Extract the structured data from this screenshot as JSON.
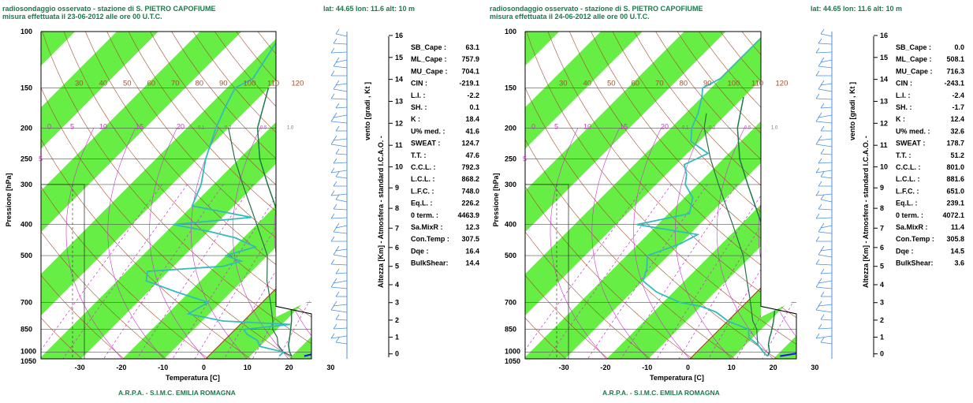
{
  "footer": "A.R.P.A. - S.I.M.C. EMILIA ROMAGNA",
  "pressure_axis_label": "Pressione [hPa]",
  "temperature_axis_label": "Temperatura [C]",
  "altitude_axis_label": "Altezza [Km] - Atmosfera - standard I.C.A.O. -",
  "wind_axis_label": "vento [gradi , Kt ]",
  "colors": {
    "band_green": "#66ee44",
    "temperature": "#1a1aee",
    "dewpoint": "#33bbbb",
    "parcel": "#1a7a4a",
    "dry_adiabat": "#a0522d",
    "mixing_ratio": "#cc33cc",
    "freezing_line": "#dd2222",
    "wind": "#4a90e2",
    "header": "#1a7a4a"
  },
  "chart_data": [
    {
      "type": "skew-t",
      "title_line1": "radiosondaggio osservato - stazione di S. PIETRO CAPOFIUME",
      "title_line2": "misura effettuata il 23-06-2012 alle ore 00 U.T.C.",
      "location": "lat:  44.65 lon:    11.6 alt:    10  m",
      "pressure_ticks": [
        "100",
        "150",
        "200",
        "250",
        "300",
        "400",
        "500",
        "700",
        "850",
        "1000",
        "1050"
      ],
      "temperature_ticks": [
        "-30",
        "-20",
        "-10",
        "0",
        "10",
        "20",
        "30"
      ],
      "altitude_ticks": [
        "0",
        "1",
        "2",
        "3",
        "4",
        "5",
        "6",
        "7",
        "8",
        "9",
        "10",
        "11",
        "12",
        "13",
        "14",
        "15",
        "16"
      ],
      "dry_adiabat_labels": [
        "30",
        "40",
        "50",
        "60",
        "70",
        "80",
        "90",
        "100",
        "110",
        "120"
      ],
      "mixing_ratio_labels": [
        "0",
        "5",
        "10",
        "15",
        "20",
        "0.1",
        "0.2",
        "0.5",
        "1.0"
      ],
      "indices": [
        {
          "label": "SB_Cape :",
          "value": "63.1"
        },
        {
          "label": "ML_Cape :",
          "value": "757.9"
        },
        {
          "label": "MU_Cape :",
          "value": "704.1"
        },
        {
          "label": "CIN      :",
          "value": "-219.1"
        },
        {
          "label": "L.I.      :",
          "value": "-2.2"
        },
        {
          "label": "SH.      :",
          "value": "0.1"
        },
        {
          "label": "K         :",
          "value": "18.4"
        },
        {
          "label": "U% med. :",
          "value": "41.6"
        },
        {
          "label": "SWEAT  :",
          "value": "124.7"
        },
        {
          "label": "T.T.     :",
          "value": "47.6"
        },
        {
          "label": "C.C.L.  :",
          "value": "792.3"
        },
        {
          "label": "L.C.L.  :",
          "value": "868.2"
        },
        {
          "label": "L.F.C.  :",
          "value": "748.0"
        },
        {
          "label": "Eq.L.    :",
          "value": "226.2"
        },
        {
          "label": "0 term. :",
          "value": "4463.9"
        },
        {
          "label": "Sa.MixR :",
          "value": "12.3"
        },
        {
          "label": "Con.Temp :",
          "value": "307.5"
        },
        {
          "label": "Dqe      :",
          "value": "16.4"
        },
        {
          "label": "BulkShear:",
          "value": "14.4"
        }
      ],
      "temperature_profile": [
        [
          1030,
          23
        ],
        [
          1000,
          26
        ],
        [
          950,
          23
        ],
        [
          900,
          21.5
        ],
        [
          850,
          19
        ],
        [
          800,
          18
        ],
        [
          750,
          15
        ],
        [
          700,
          13
        ],
        [
          650,
          11
        ],
        [
          600,
          9
        ],
        [
          550,
          6
        ],
        [
          500,
          1
        ],
        [
          450,
          -5
        ],
        [
          400,
          -10
        ],
        [
          350,
          -15
        ],
        [
          300,
          -21
        ],
        [
          250,
          -27
        ],
        [
          200,
          -32
        ],
        [
          180,
          -30
        ],
        [
          170,
          -26
        ],
        [
          160,
          -20
        ],
        [
          150,
          -14
        ],
        [
          140,
          -10
        ],
        [
          120,
          -4
        ],
        [
          100,
          0
        ]
      ],
      "dewpoint_profile": [
        [
          1030,
          17
        ],
        [
          1000,
          17
        ],
        [
          960,
          10
        ],
        [
          920,
          8
        ],
        [
          880,
          4
        ],
        [
          850,
          2
        ],
        [
          820,
          12
        ],
        [
          800,
          -5
        ],
        [
          760,
          -15
        ],
        [
          700,
          -13
        ],
        [
          650,
          -23
        ],
        [
          600,
          -33
        ],
        [
          560,
          -35
        ],
        [
          540,
          -18
        ],
        [
          520,
          -15
        ],
        [
          500,
          -20
        ],
        [
          470,
          -15
        ],
        [
          440,
          -22
        ],
        [
          420,
          -30
        ],
        [
          400,
          -40
        ],
        [
          380,
          -23
        ],
        [
          350,
          -40
        ],
        [
          300,
          -43
        ],
        [
          250,
          -48
        ],
        [
          200,
          -53
        ],
        [
          170,
          -56
        ],
        [
          150,
          -58
        ],
        [
          140,
          -56
        ],
        [
          100,
          -60
        ]
      ],
      "parcel_profile": [
        [
          1030,
          20
        ],
        [
          1000,
          18.5
        ],
        [
          950,
          16.5
        ],
        [
          900,
          15
        ],
        [
          870,
          14
        ],
        [
          800,
          11.5
        ],
        [
          700,
          7
        ],
        [
          600,
          2
        ],
        [
          500,
          -5
        ],
        [
          400,
          -14
        ],
        [
          300,
          -27
        ],
        [
          250,
          -35
        ],
        [
          200,
          -43
        ],
        [
          150,
          -50
        ]
      ],
      "env_profile": [
        [
          1030,
          20
        ],
        [
          1000,
          17
        ],
        [
          950,
          14
        ],
        [
          900,
          12
        ],
        [
          850,
          9
        ],
        [
          800,
          7
        ],
        [
          700,
          2
        ],
        [
          600,
          -4
        ],
        [
          500,
          -10
        ],
        [
          400,
          -20
        ],
        [
          300,
          -33
        ],
        [
          250,
          -41
        ],
        [
          200,
          -50
        ]
      ]
    },
    {
      "type": "skew-t",
      "title_line1": "radiosondaggio osservato - stazione di S. PIETRO CAPOFIUME",
      "title_line2": "misura effettuata il 24-06-2012 alle ore 00 U.T.C.",
      "location": "lat:  44.65 lon:    11.6 alt:    10  m",
      "pressure_ticks": [
        "100",
        "150",
        "200",
        "250",
        "300",
        "400",
        "500",
        "700",
        "850",
        "1000",
        "1050"
      ],
      "temperature_ticks": [
        "-30",
        "-20",
        "-10",
        "0",
        "10",
        "20",
        "30"
      ],
      "altitude_ticks": [
        "0",
        "1",
        "2",
        "3",
        "4",
        "5",
        "6",
        "7",
        "8",
        "9",
        "10",
        "11",
        "12",
        "13",
        "14",
        "15",
        "16"
      ],
      "dry_adiabat_labels": [
        "30",
        "40",
        "50",
        "60",
        "70",
        "80",
        "90",
        "100",
        "110",
        "120"
      ],
      "mixing_ratio_labels": [
        "0",
        "5",
        "10",
        "15",
        "20",
        "0.1",
        "0.2",
        "0.5",
        "1.0"
      ],
      "indices": [
        {
          "label": "SB_Cape :",
          "value": "0.0"
        },
        {
          "label": "ML_Cape :",
          "value": "508.1"
        },
        {
          "label": "MU_Cape :",
          "value": "716.3"
        },
        {
          "label": "CIN      :",
          "value": "-243.1"
        },
        {
          "label": "L.I.      :",
          "value": "-2.4"
        },
        {
          "label": "SH.      :",
          "value": "-1.7"
        },
        {
          "label": "K         :",
          "value": "12.4"
        },
        {
          "label": "U% med. :",
          "value": "32.6"
        },
        {
          "label": "SWEAT  :",
          "value": "178.7"
        },
        {
          "label": "T.T.     :",
          "value": "51.2"
        },
        {
          "label": "C.C.L.  :",
          "value": "801.0"
        },
        {
          "label": "L.C.L.  :",
          "value": "881.6"
        },
        {
          "label": "L.F.C.  :",
          "value": "651.0"
        },
        {
          "label": "Eq.L.    :",
          "value": "239.1"
        },
        {
          "label": "0 term. :",
          "value": "4072.1"
        },
        {
          "label": "Sa.MixR :",
          "value": "11.4"
        },
        {
          "label": "Con.Temp :",
          "value": "305.8"
        },
        {
          "label": "Dqe      :",
          "value": "14.5"
        },
        {
          "label": "BulkShear:",
          "value": "3.6"
        }
      ],
      "temperature_profile": [
        [
          1030,
          21
        ],
        [
          1000,
          26
        ],
        [
          950,
          23
        ],
        [
          900,
          21
        ],
        [
          850,
          19.5
        ],
        [
          800,
          17
        ],
        [
          700,
          13
        ],
        [
          600,
          6
        ],
        [
          500,
          -1
        ],
        [
          450,
          -6
        ],
        [
          400,
          -11
        ],
        [
          350,
          -16
        ],
        [
          300,
          -21
        ],
        [
          250,
          -28
        ],
        [
          200,
          -38
        ],
        [
          190,
          -35
        ],
        [
          180,
          -30
        ],
        [
          160,
          -22
        ],
        [
          150,
          -17
        ],
        [
          130,
          -12
        ],
        [
          110,
          -5
        ],
        [
          100,
          -3
        ]
      ],
      "dewpoint_profile": [
        [
          1030,
          18
        ],
        [
          1000,
          16
        ],
        [
          950,
          13
        ],
        [
          900,
          9
        ],
        [
          850,
          7
        ],
        [
          800,
          0
        ],
        [
          750,
          -5
        ],
        [
          720,
          -10
        ],
        [
          700,
          -16
        ],
        [
          650,
          -24
        ],
        [
          600,
          -30
        ],
        [
          550,
          -32
        ],
        [
          500,
          -35
        ],
        [
          460,
          -30
        ],
        [
          430,
          -28
        ],
        [
          400,
          -45
        ],
        [
          370,
          -35
        ],
        [
          330,
          -38
        ],
        [
          300,
          -43
        ],
        [
          280,
          -45
        ],
        [
          260,
          -48
        ],
        [
          240,
          -45
        ],
        [
          220,
          -52
        ],
        [
          200,
          -55
        ],
        [
          180,
          -57
        ],
        [
          160,
          -60
        ],
        [
          150,
          -62
        ],
        [
          140,
          -60
        ],
        [
          100,
          -60
        ]
      ],
      "parcel_profile": [
        [
          1030,
          18
        ],
        [
          1000,
          17.5
        ],
        [
          950,
          15.5
        ],
        [
          900,
          14
        ],
        [
          880,
          13.5
        ],
        [
          800,
          11
        ],
        [
          700,
          7
        ],
        [
          600,
          1.5
        ],
        [
          500,
          -5.5
        ],
        [
          400,
          -15
        ],
        [
          300,
          -28
        ],
        [
          250,
          -36
        ],
        [
          200,
          -44
        ],
        [
          160,
          -50
        ]
      ],
      "env_profile": [
        [
          1030,
          18
        ],
        [
          1000,
          16
        ],
        [
          950,
          13
        ],
        [
          900,
          11
        ],
        [
          850,
          9
        ],
        [
          800,
          6
        ],
        [
          700,
          1
        ],
        [
          600,
          -5
        ],
        [
          500,
          -12
        ],
        [
          400,
          -22
        ],
        [
          300,
          -35
        ],
        [
          250,
          -43
        ],
        [
          200,
          -52
        ],
        [
          180,
          -55
        ]
      ]
    }
  ]
}
